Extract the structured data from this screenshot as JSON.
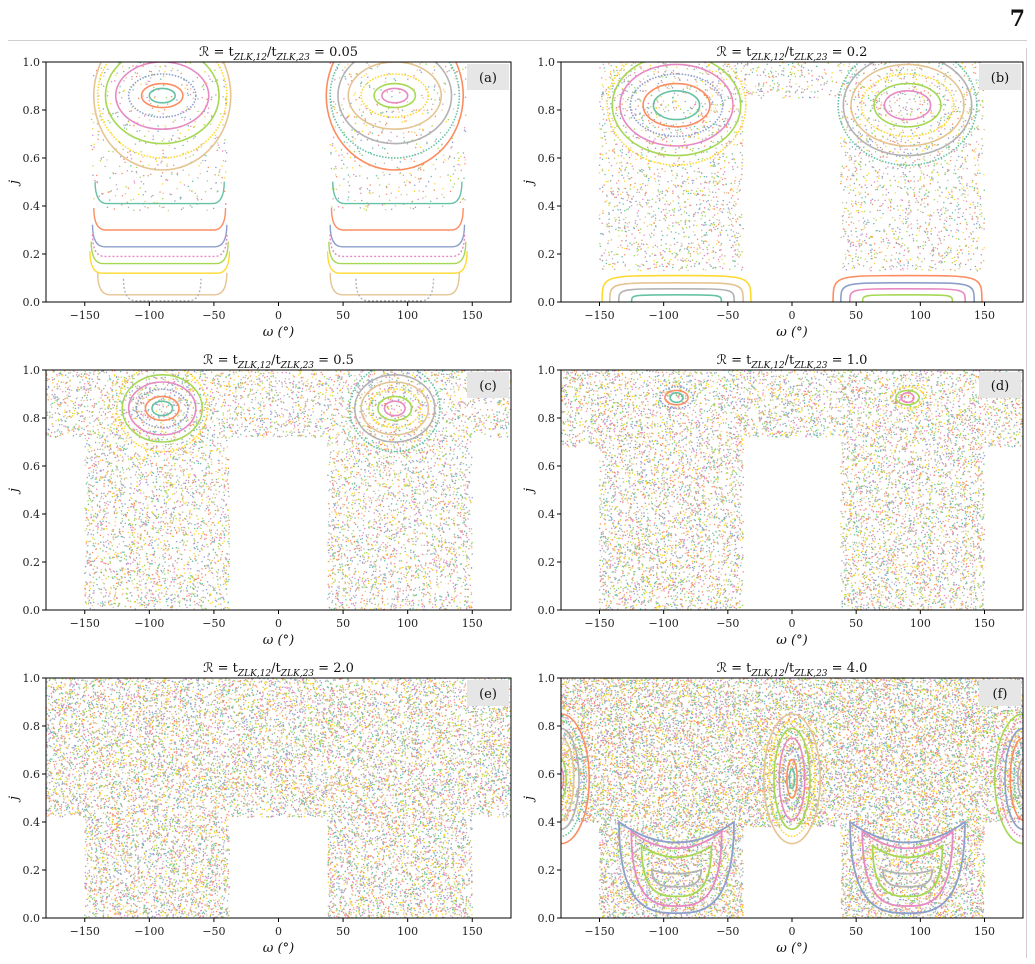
{
  "page": {
    "number": "7"
  },
  "colors": {
    "axis": "#000000",
    "panel_label_bg": "#e6e6e6"
  },
  "chart_data": [
    {
      "type": "scatter",
      "panel": "(a)",
      "title": "ℛ = t_{ZLK,12}/t_{ZLK,23} = 0.05",
      "title_parts": {
        "pre": "ℛ = t",
        "sub1": "ZLK,12",
        "mid": "/t",
        "sub2": "ZLK,23",
        "post": " = 0.05"
      },
      "xlabel": "ω (°)",
      "ylabel": "j",
      "xlim": [
        -180,
        180
      ],
      "ylim": [
        0,
        1
      ],
      "xticks": [
        -150,
        -100,
        -50,
        0,
        50,
        100,
        150
      ],
      "yticks": [
        0.0,
        0.2,
        0.4,
        0.6,
        0.8,
        1.0
      ],
      "chaos": {
        "density": 0.15,
        "regions": [
          [
            -145,
            -40,
            0.38,
            1.0
          ],
          [
            40,
            145,
            0.38,
            1.0
          ]
        ]
      },
      "islands": [
        {
          "cx": -90,
          "cy": 0.86,
          "levels": [
            [
              10,
              0.03
            ],
            [
              16,
              0.05
            ],
            [
              26,
              0.09
            ],
            [
              36,
              0.14
            ],
            [
              44,
              0.2
            ],
            [
              50,
              0.26
            ],
            [
              53,
              0.31
            ]
          ]
        },
        {
          "cx": 90,
          "cy": 0.86,
          "levels": [
            [
              10,
              0.03
            ],
            [
              16,
              0.05
            ],
            [
              26,
              0.09
            ],
            [
              36,
              0.14
            ],
            [
              44,
              0.2
            ],
            [
              50,
              0.26
            ],
            [
              53,
              0.31
            ]
          ]
        }
      ],
      "bands": [
        {
          "j": 0.41,
          "xmin": -142,
          "xmax": -42
        },
        {
          "j": 0.3,
          "xmin": -143,
          "xmax": -41
        },
        {
          "j": 0.23,
          "xmin": -144,
          "xmax": -40
        },
        {
          "j": 0.19,
          "xmin": -144,
          "xmax": -40
        },
        {
          "j": 0.16,
          "xmin": -145,
          "xmax": -39
        },
        {
          "j": 0.12,
          "xmin": -146,
          "xmax": -38
        },
        {
          "j": 0.03,
          "xmin": -140,
          "xmax": -40
        },
        {
          "j": 0.005,
          "xmin": -120,
          "xmax": -60
        },
        {
          "j": 0.41,
          "xmin": 42,
          "xmax": 142
        },
        {
          "j": 0.3,
          "xmin": 41,
          "xmax": 143
        },
        {
          "j": 0.23,
          "xmin": 40,
          "xmax": 144
        },
        {
          "j": 0.19,
          "xmin": 40,
          "xmax": 144
        },
        {
          "j": 0.16,
          "xmin": 39,
          "xmax": 145
        },
        {
          "j": 0.12,
          "xmin": 38,
          "xmax": 146
        },
        {
          "j": 0.03,
          "xmin": 40,
          "xmax": 140
        },
        {
          "j": 0.005,
          "xmin": 60,
          "xmax": 120
        }
      ],
      "arches": [],
      "shells": []
    },
    {
      "type": "scatter",
      "panel": "(b)",
      "title": "ℛ = t_{ZLK,12}/t_{ZLK,23} = 0.2",
      "title_parts": {
        "pre": "ℛ = t",
        "sub1": "ZLK,12",
        "mid": "/t",
        "sub2": "ZLK,23",
        "post": " = 0.2"
      },
      "xlabel": "ω (°)",
      "ylabel": "j",
      "xlim": [
        -180,
        180
      ],
      "ylim": [
        0,
        1
      ],
      "xticks": [
        -150,
        -100,
        -50,
        0,
        50,
        100,
        150
      ],
      "yticks": [
        0.0,
        0.2,
        0.4,
        0.6,
        0.8,
        1.0
      ],
      "chaos": {
        "density": 0.35,
        "regions": [
          [
            -150,
            -38,
            0.13,
            1.0
          ],
          [
            38,
            150,
            0.13,
            1.0
          ],
          [
            -38,
            38,
            0.85,
            1.0
          ]
        ]
      },
      "islands": [
        {
          "cx": -90,
          "cy": 0.82,
          "levels": [
            [
              18,
              0.06
            ],
            [
              26,
              0.09
            ],
            [
              36,
              0.13
            ],
            [
              44,
              0.17
            ],
            [
              50,
              0.21
            ],
            [
              54,
              0.25
            ]
          ]
        },
        {
          "cx": 90,
          "cy": 0.82,
          "levels": [
            [
              18,
              0.06
            ],
            [
              26,
              0.09
            ],
            [
              36,
              0.13
            ],
            [
              44,
              0.17
            ],
            [
              50,
              0.21
            ],
            [
              54,
              0.25
            ]
          ]
        }
      ],
      "bands": [],
      "arches": [
        {
          "cx": -90,
          "h": 0.11,
          "w": 58
        },
        {
          "cx": -90,
          "h": 0.08,
          "w": 52
        },
        {
          "cx": -90,
          "h": 0.055,
          "w": 45
        },
        {
          "cx": -90,
          "h": 0.03,
          "w": 35
        },
        {
          "cx": 90,
          "h": 0.11,
          "w": 58
        },
        {
          "cx": 90,
          "h": 0.08,
          "w": 52
        },
        {
          "cx": 90,
          "h": 0.055,
          "w": 45
        },
        {
          "cx": 90,
          "h": 0.03,
          "w": 35
        }
      ],
      "shells": []
    },
    {
      "type": "scatter",
      "panel": "(c)",
      "title": "ℛ = t_{ZLK,12}/t_{ZLK,23} = 0.5",
      "title_parts": {
        "pre": "ℛ = t",
        "sub1": "ZLK,12",
        "mid": "/t",
        "sub2": "ZLK,23",
        "post": " = 0.5"
      },
      "xlabel": "ω (°)",
      "ylabel": "j",
      "xlim": [
        -180,
        180
      ],
      "ylim": [
        0,
        1
      ],
      "xticks": [
        -150,
        -100,
        -50,
        0,
        50,
        100,
        150
      ],
      "yticks": [
        0.0,
        0.2,
        0.4,
        0.6,
        0.8,
        1.0
      ],
      "chaos": {
        "density": 0.6,
        "regions": [
          [
            -150,
            -38,
            0.0,
            1.0
          ],
          [
            38,
            150,
            0.0,
            1.0
          ],
          [
            -180,
            -150,
            0.72,
            1.0
          ],
          [
            150,
            180,
            0.72,
            1.0
          ],
          [
            -38,
            38,
            0.72,
            1.0
          ]
        ]
      },
      "islands": [
        {
          "cx": -90,
          "cy": 0.84,
          "levels": [
            [
              8,
              0.03
            ],
            [
              13,
              0.05
            ],
            [
              20,
              0.08
            ],
            [
              26,
              0.11
            ],
            [
              31,
              0.14
            ],
            [
              35,
              0.18
            ]
          ]
        },
        {
          "cx": 90,
          "cy": 0.84,
          "levels": [
            [
              8,
              0.03
            ],
            [
              13,
              0.05
            ],
            [
              20,
              0.08
            ],
            [
              26,
              0.11
            ],
            [
              31,
              0.14
            ],
            [
              35,
              0.18
            ]
          ]
        }
      ],
      "bands": [],
      "arches": [],
      "shells": []
    },
    {
      "type": "scatter",
      "panel": "(d)",
      "title": "ℛ = t_{ZLK,12}/t_{ZLK,23} = 1.0",
      "title_parts": {
        "pre": "ℛ = t",
        "sub1": "ZLK,12",
        "mid": "/t",
        "sub2": "ZLK,23",
        "post": " = 1.0"
      },
      "xlabel": "ω (°)",
      "ylabel": "j",
      "xlim": [
        -180,
        180
      ],
      "ylim": [
        0,
        1
      ],
      "xticks": [
        -150,
        -100,
        -50,
        0,
        50,
        100,
        150
      ],
      "yticks": [
        0.0,
        0.2,
        0.4,
        0.6,
        0.8,
        1.0
      ],
      "chaos": {
        "density": 0.75,
        "regions": [
          [
            -150,
            -38,
            0.0,
            1.0
          ],
          [
            38,
            150,
            0.0,
            1.0
          ],
          [
            -180,
            -150,
            0.68,
            1.0
          ],
          [
            150,
            180,
            0.68,
            1.0
          ],
          [
            -38,
            38,
            0.72,
            1.0
          ]
        ]
      },
      "islands": [
        {
          "cx": -90,
          "cy": 0.885,
          "levels": [
            [
              5,
              0.02
            ],
            [
              9,
              0.03
            ],
            [
              13,
              0.045
            ]
          ]
        },
        {
          "cx": 90,
          "cy": 0.885,
          "levels": [
            [
              5,
              0.02
            ],
            [
              9,
              0.03
            ],
            [
              13,
              0.045
            ]
          ]
        }
      ],
      "bands": [],
      "arches": [],
      "shells": []
    },
    {
      "type": "scatter",
      "panel": "(e)",
      "title": "ℛ = t_{ZLK,12}/t_{ZLK,23} = 2.0",
      "title_parts": {
        "pre": "ℛ = t",
        "sub1": "ZLK,12",
        "mid": "/t",
        "sub2": "ZLK,23",
        "post": " = 2.0"
      },
      "xlabel": "ω (°)",
      "ylabel": "j",
      "xlim": [
        -180,
        180
      ],
      "ylim": [
        0,
        1
      ],
      "xticks": [
        -150,
        -100,
        -50,
        0,
        50,
        100,
        150
      ],
      "yticks": [
        0.0,
        0.2,
        0.4,
        0.6,
        0.8,
        1.0
      ],
      "chaos": {
        "density": 0.95,
        "regions": [
          [
            -150,
            -38,
            0.0,
            1.0
          ],
          [
            38,
            150,
            0.0,
            1.0
          ],
          [
            -180,
            -150,
            0.42,
            1.0
          ],
          [
            150,
            180,
            0.42,
            1.0
          ],
          [
            -38,
            38,
            0.42,
            1.0
          ]
        ]
      },
      "islands": [],
      "bands": [],
      "arches": [],
      "shells": []
    },
    {
      "type": "scatter",
      "panel": "(f)",
      "title": "ℛ = t_{ZLK,12}/t_{ZLK,23} = 4.0",
      "title_parts": {
        "pre": "ℛ = t",
        "sub1": "ZLK,12",
        "mid": "/t",
        "sub2": "ZLK,23",
        "post": " = 4.0"
      },
      "xlabel": "ω (°)",
      "ylabel": "j",
      "xlim": [
        -180,
        180
      ],
      "ylim": [
        0,
        1
      ],
      "xticks": [
        -150,
        -100,
        -50,
        0,
        50,
        100,
        150
      ],
      "yticks": [
        0.0,
        0.2,
        0.4,
        0.6,
        0.8,
        1.0
      ],
      "chaos": {
        "density": 1.25,
        "regions": [
          [
            -150,
            -38,
            0.0,
            1.0
          ],
          [
            38,
            150,
            0.0,
            1.0
          ],
          [
            -180,
            -150,
            0.4,
            1.0
          ],
          [
            150,
            180,
            0.4,
            1.0
          ],
          [
            -38,
            38,
            0.38,
            1.0
          ]
        ]
      },
      "islands": [
        {
          "cx": 0,
          "cy": 0.58,
          "levels": [
            [
              2,
              0.04
            ],
            [
              4,
              0.08
            ],
            [
              7,
              0.13
            ],
            [
              10,
              0.17
            ],
            [
              14,
              0.21
            ],
            [
              18,
              0.24
            ],
            [
              22,
              0.27
            ]
          ]
        },
        {
          "cx": -180,
          "cy": 0.58,
          "levels": [
            [
              2,
              0.04
            ],
            [
              4,
              0.08
            ],
            [
              7,
              0.13
            ],
            [
              10,
              0.17
            ],
            [
              14,
              0.21
            ],
            [
              18,
              0.24
            ],
            [
              22,
              0.27
            ]
          ]
        },
        {
          "cx": 180,
          "cy": 0.58,
          "levels": [
            [
              2,
              0.04
            ],
            [
              4,
              0.08
            ],
            [
              7,
              0.13
            ],
            [
              10,
              0.17
            ],
            [
              14,
              0.21
            ],
            [
              18,
              0.24
            ],
            [
              22,
              0.27
            ]
          ]
        }
      ],
      "bands": [],
      "arches": [],
      "shells": [
        {
          "cx": -90,
          "top": 0.4,
          "bot": 0.02,
          "w": 28
        },
        {
          "cx": -90,
          "top": 0.36,
          "bot": 0.05,
          "w": 22
        },
        {
          "cx": -90,
          "top": 0.3,
          "bot": 0.09,
          "w": 17
        },
        {
          "cx": -90,
          "top": 0.2,
          "bot": 0.13,
          "w": 12
        },
        {
          "cx": 90,
          "top": 0.4,
          "bot": 0.02,
          "w": 28
        },
        {
          "cx": 90,
          "top": 0.36,
          "bot": 0.05,
          "w": 22
        },
        {
          "cx": 90,
          "top": 0.3,
          "bot": 0.09,
          "w": 17
        },
        {
          "cx": 90,
          "top": 0.2,
          "bot": 0.13,
          "w": 12
        }
      ]
    }
  ]
}
